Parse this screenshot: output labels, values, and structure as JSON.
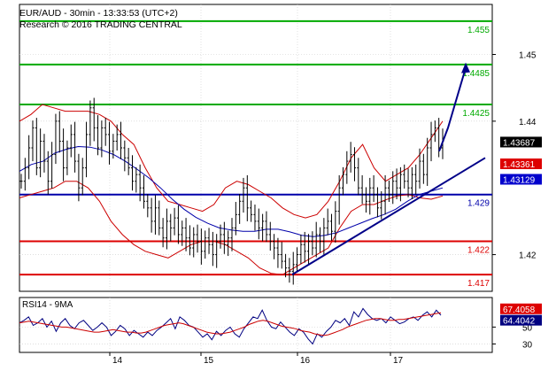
{
  "header": {
    "line1": "EUR/AUD - 30min - 13:33:53 (UTC+2)",
    "line2": "Research © 2016 TRADING CENTRAL"
  },
  "colors": {
    "price": "#000000",
    "bollinger": "#cc0000",
    "moving_average": "#0000aa",
    "resistance": "#00aa00",
    "support": "#dd0000",
    "pivot": "#0000aa",
    "rsi": "#000080",
    "rsi_ma": "#cc0000",
    "projection_arrow": "#000088",
    "trendline": "#000088",
    "tag_last": "#000000",
    "tag_red": "#dd0000",
    "tag_blue": "#0000cc"
  },
  "chart_data": [
    {
      "type": "candlestick",
      "panel": "price",
      "instrument": "EUR/AUD",
      "timeframe": "30min",
      "yaxis_ticks": [
        "1.45",
        "1.44",
        "1.42"
      ],
      "xaxis_ticks": [
        "14",
        "15",
        "16",
        "17"
      ],
      "ylim": [
        1.4145,
        1.4575
      ],
      "grid": true,
      "levels": [
        {
          "value": 1.455,
          "label": "1.455",
          "role": "resistance"
        },
        {
          "value": 1.4485,
          "label": "1.4485",
          "role": "resistance"
        },
        {
          "value": 1.4425,
          "label": "1.4425",
          "role": "resistance"
        },
        {
          "value": 1.429,
          "label": "1.429",
          "role": "pivot"
        },
        {
          "value": 1.422,
          "label": "1.422",
          "role": "support"
        },
        {
          "value": 1.417,
          "label": "1.417",
          "role": "support"
        }
      ],
      "price_tags": [
        {
          "value": 1.43687,
          "label": "1.43687",
          "role": "last"
        },
        {
          "value": 1.43361,
          "label": "1.43361",
          "role": "bollinger"
        },
        {
          "value": 1.43129,
          "label": "1.43129",
          "role": "moving_average"
        }
      ],
      "close": [
        1.431,
        1.433,
        1.436,
        1.439,
        1.433,
        1.437,
        1.434,
        1.431,
        1.435,
        1.44,
        1.437,
        1.433,
        1.436,
        1.438,
        1.434,
        1.43,
        1.433,
        1.438,
        1.442,
        1.439,
        1.436,
        1.439,
        1.438,
        1.4355,
        1.437,
        1.438,
        1.436,
        1.4345,
        1.433,
        1.431,
        1.432,
        1.43,
        1.428,
        1.427,
        1.425,
        1.427,
        1.424,
        1.4225,
        1.425,
        1.424,
        1.4255,
        1.423,
        1.424,
        1.4225,
        1.421,
        1.423,
        1.422,
        1.4205,
        1.4225,
        1.4215,
        1.42,
        1.422,
        1.423,
        1.4215,
        1.4225,
        1.424,
        1.426,
        1.428,
        1.43,
        1.427,
        1.426,
        1.425,
        1.424,
        1.425,
        1.423,
        1.422,
        1.421,
        1.42,
        1.419,
        1.418,
        1.4175,
        1.4185,
        1.42,
        1.4215,
        1.4205,
        1.422,
        1.421,
        1.423,
        1.422,
        1.424,
        1.425,
        1.4235,
        1.4265,
        1.43,
        1.432,
        1.434,
        1.435,
        1.433,
        1.43,
        1.429,
        1.428,
        1.43,
        1.429,
        1.427,
        1.428,
        1.43,
        1.429,
        1.431,
        1.43,
        1.432,
        1.431,
        1.43,
        1.432,
        1.431,
        1.434,
        1.432,
        1.436,
        1.438,
        1.439,
        1.436,
        1.437
      ],
      "moving_average": [
        1.4325,
        1.4335,
        1.434,
        1.4352,
        1.4358,
        1.4362,
        1.4361,
        1.4357,
        1.435,
        1.434,
        1.4328,
        1.4315,
        1.43,
        1.4283,
        1.4268,
        1.4256,
        1.4247,
        1.424,
        1.4237,
        1.4235,
        1.4235,
        1.4238,
        1.4238,
        1.4234,
        1.4229,
        1.4227,
        1.4229,
        1.4233,
        1.424,
        1.4247,
        1.4254,
        1.426,
        1.4268,
        1.428,
        1.429,
        1.4295,
        1.43
      ],
      "bollinger_upper": [
        1.44,
        1.441,
        1.4425,
        1.442,
        1.4415,
        1.4415,
        1.4415,
        1.441,
        1.44,
        1.438,
        1.4365,
        1.433,
        1.43,
        1.428,
        1.4275,
        1.427,
        1.4265,
        1.4275,
        1.43,
        1.431,
        1.4305,
        1.4295,
        1.4285,
        1.427,
        1.426,
        1.4255,
        1.426,
        1.428,
        1.431,
        1.4345,
        1.4365,
        1.433,
        1.431,
        1.432,
        1.433,
        1.435,
        1.4375,
        1.44
      ],
      "bollinger_lower": [
        1.4285,
        1.429,
        1.4295,
        1.43,
        1.431,
        1.431,
        1.43,
        1.428,
        1.425,
        1.423,
        1.4215,
        1.4205,
        1.42,
        1.4195,
        1.4205,
        1.4215,
        1.422,
        1.422,
        1.4215,
        1.4205,
        1.4195,
        1.418,
        1.4172,
        1.417,
        1.418,
        1.419,
        1.42,
        1.421,
        1.424,
        1.4265,
        1.4275,
        1.4275,
        1.4282,
        1.4288,
        1.429,
        1.4285,
        1.4283,
        1.4288
      ],
      "annotations": [
        {
          "kind": "trendline",
          "from": 1.417,
          "to": 1.4345
        },
        {
          "kind": "projection_arrow",
          "points": [
            1.4355,
            1.439,
            1.448
          ]
        }
      ]
    },
    {
      "type": "line",
      "panel": "rsi",
      "title": "RSI14 - 9MA",
      "yaxis_ticks": [
        "50",
        "30"
      ],
      "ylim": [
        20,
        85
      ],
      "grid": true,
      "value_tags": [
        {
          "value": 67.4058,
          "label": "67.4058",
          "role": "rsi_ma"
        },
        {
          "value": 64.4042,
          "label": "64.4042",
          "role": "rsi"
        }
      ],
      "series": [
        {
          "role": "rsi",
          "values": [
            55,
            58,
            62,
            52,
            55,
            60,
            50,
            57,
            45,
            55,
            60,
            52,
            48,
            55,
            58,
            52,
            46,
            50,
            55,
            50,
            40,
            45,
            52,
            48,
            40,
            46,
            42,
            38,
            44,
            40,
            46,
            50,
            55,
            60,
            48,
            62,
            58,
            52,
            50,
            44,
            38,
            42,
            35,
            45,
            40,
            46,
            50,
            42,
            38,
            48,
            55,
            62,
            60,
            70,
            58,
            50,
            48,
            56,
            50,
            44,
            40,
            48,
            44,
            36,
            30,
            42,
            38,
            45,
            50,
            58,
            55,
            60,
            52,
            68,
            62,
            72,
            65,
            60,
            58,
            60,
            55,
            62,
            58,
            54,
            56,
            60,
            62,
            58,
            64,
            68,
            62,
            70,
            64
          ]
        },
        {
          "role": "rsi_ma",
          "values": [
            55,
            56,
            57,
            56,
            55,
            54,
            53,
            52,
            51,
            50,
            50,
            49,
            48,
            47,
            46,
            45,
            44,
            44,
            45,
            46,
            47,
            46,
            45,
            44,
            44,
            43,
            43,
            44,
            46,
            48,
            50,
            52,
            53,
            54,
            55,
            54,
            52,
            50,
            48,
            46,
            44,
            43,
            42,
            42,
            43,
            44,
            46,
            48,
            50,
            53,
            55,
            57,
            58,
            57,
            55,
            53,
            51,
            50,
            49,
            48,
            46,
            45,
            44,
            42,
            41,
            40,
            41,
            43,
            45,
            47,
            50,
            52,
            54,
            56,
            58,
            59,
            60,
            60,
            59,
            58,
            58,
            59,
            59,
            60,
            61,
            62,
            63,
            64,
            65,
            66,
            67
          ]
        }
      ]
    }
  ]
}
